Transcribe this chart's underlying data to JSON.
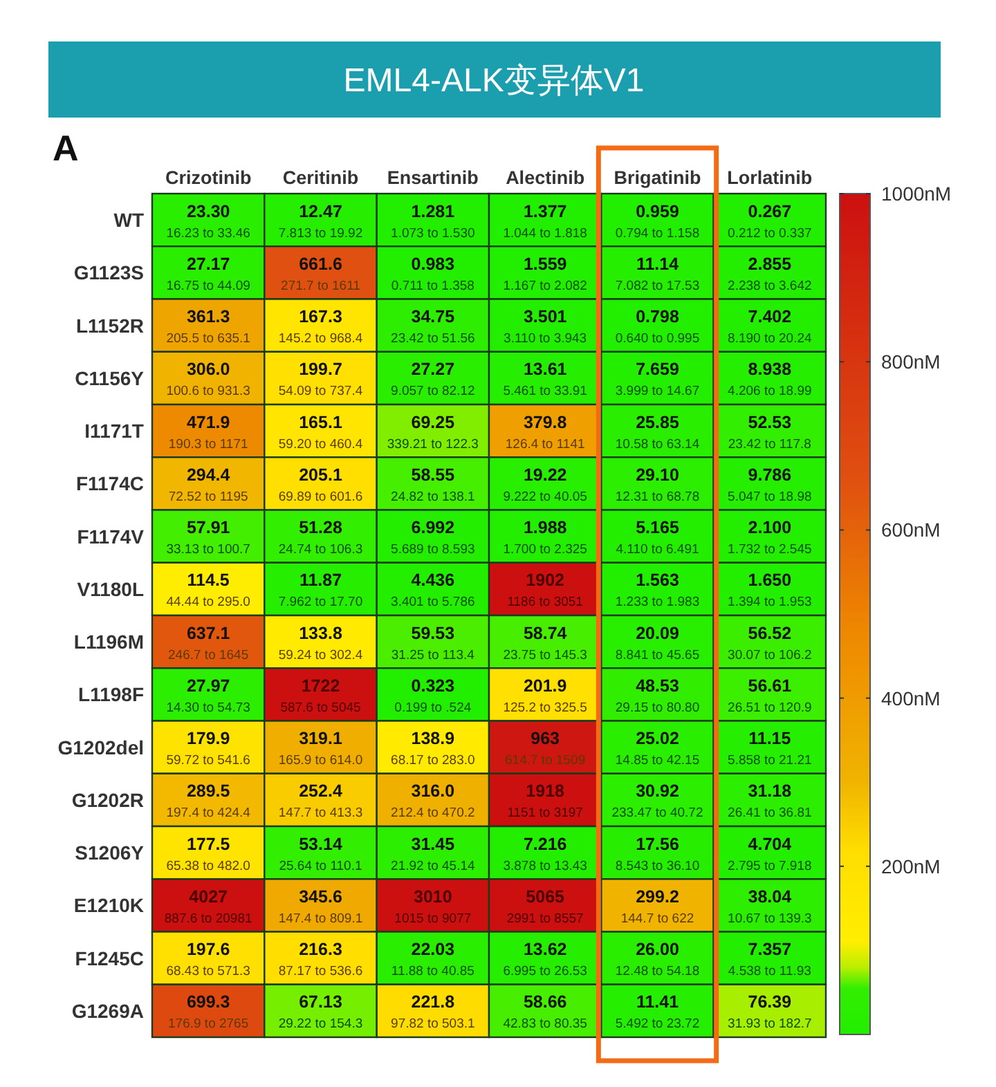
{
  "chart_data": {
    "type": "heatmap",
    "title": "EML4-ALK变异体V1",
    "annotations": [
      "A"
    ],
    "categories": [
      "Crizotinib",
      "Ceritinib",
      "Ensartinib",
      "Alectinib",
      "Brigatinib",
      "Lorlatinib"
    ],
    "y_categories": [
      "WT",
      "G1123S",
      "L1152R",
      "C1156Y",
      "I1171T",
      "F1174C",
      "F1174V",
      "V1180L",
      "L1196M",
      "L1198F",
      "G1202del",
      "G1202R",
      "S1206Y",
      "E1210K",
      "F1245C",
      "G1269A"
    ],
    "cells": [
      [
        23.3,
        12.47,
        1.281,
        1.377,
        0.959,
        0.267
      ],
      [
        27.17,
        661.6,
        0.983,
        1.559,
        11.14,
        2.855
      ],
      [
        361.3,
        167.3,
        34.75,
        3.501,
        0.798,
        7.402
      ],
      [
        306.0,
        199.7,
        27.27,
        13.61,
        7.659,
        8.938
      ],
      [
        471.9,
        165.1,
        69.25,
        379.8,
        25.85,
        52.53
      ],
      [
        294.4,
        205.1,
        58.55,
        19.22,
        29.1,
        9.786
      ],
      [
        57.91,
        51.28,
        6.992,
        1.988,
        5.165,
        2.1
      ],
      [
        114.5,
        11.87,
        4.436,
        1902,
        1.563,
        1.65
      ],
      [
        637.1,
        133.8,
        59.53,
        58.74,
        20.09,
        56.52
      ],
      [
        27.97,
        1722,
        0.323,
        201.9,
        48.53,
        56.61
      ],
      [
        179.9,
        319.1,
        138.9,
        963,
        25.02,
        11.15
      ],
      [
        289.5,
        252.4,
        316.0,
        1918,
        30.92,
        31.18
      ],
      [
        177.5,
        53.14,
        31.45,
        7.216,
        17.56,
        4.704
      ],
      [
        4027,
        345.6,
        3010,
        5065,
        299.2,
        38.04
      ],
      [
        197.6,
        216.3,
        22.03,
        13.62,
        26.0,
        7.357
      ],
      [
        699.3,
        67.13,
        221.8,
        58.66,
        11.41,
        76.39
      ]
    ],
    "cell_labels": [
      [
        "23.30\n16.23 to 33.46",
        "12.47\n7.813 to 19.92",
        "1.281\n1.073 to 1.530",
        "1.377\n1.044 to 1.818",
        "0.959\n0.794 to 1.158",
        "0.267\n0.212 to 0.337"
      ],
      [
        "27.17\n16.75 to 44.09",
        "661.6\n271.7 to 1611",
        "0.983\n0.711 to 1.358",
        "1.559\n1.167 to 2.082",
        "11.14\n7.082 to 17.53",
        "2.855\n2.238 to 3.642"
      ],
      [
        "361.3\n205.5 to 635.1",
        "167.3\n145.2 to 968.4",
        "34.75\n23.42 to 51.56",
        "3.501\n3.110 to 3.943",
        "0.798\n0.640 to 0.995",
        "7.402\n8.190 to 20.24"
      ],
      [
        "306.0\n100.6 to 931.3",
        "199.7\n54.09 to 737.4",
        "27.27\n9.057 to 82.12",
        "13.61\n5.461 to 33.91",
        "7.659\n3.999 to 14.67",
        "8.938\n4.206 to 18.99"
      ],
      [
        "471.9\n190.3 to 1171",
        "165.1\n59.20 to 460.4",
        "69.25\n339.21 to 122.3",
        "379.8\n126.4 to 1141",
        "25.85\n10.58 to 63.14",
        "52.53\n23.42 to 117.8"
      ],
      [
        "294.4\n72.52 to 1195",
        "205.1\n69.89 to 601.6",
        "58.55\n24.82 to 138.1",
        "19.22\n9.222 to 40.05",
        "29.10\n12.31 to 68.78",
        "9.786\n5.047 to 18.98"
      ],
      [
        "57.91\n33.13 to 100.7",
        "51.28\n24.74 to 106.3",
        "6.992\n5.689 to 8.593",
        "1.988\n1.700 to 2.325",
        "5.165\n4.110 to 6.491",
        "2.100\n1.732 to 2.545"
      ],
      [
        "114.5\n44.44 to 295.0",
        "11.87\n7.962 to 17.70",
        "4.436\n3.401 to 5.786",
        "1902\n1186 to 3051",
        "1.563\n1.233 to 1.983",
        "1.650\n1.394 to 1.953"
      ],
      [
        "637.1\n246.7 to 1645",
        "133.8\n59.24 to 302.4",
        "59.53\n31.25 to 113.4",
        "58.74\n23.75 to 145.3",
        "20.09\n8.841 to 45.65",
        "56.52\n30.07 to 106.2"
      ],
      [
        "27.97\n14.30 to 54.73",
        "1722\n587.6 to 5045",
        "0.323\n0.199 to .524",
        "201.9\n125.2 to 325.5",
        "48.53\n29.15 to 80.80",
        "56.61\n26.51 to 120.9"
      ],
      [
        "179.9\n59.72 to 541.6",
        "319.1\n165.9 to 614.0",
        "138.9\n68.17 to 283.0",
        "963\n614.7 to 1509",
        "25.02\n14.85 to 42.15",
        "11.15\n5.858 to 21.21"
      ],
      [
        "289.5\n197.4 to 424.4",
        "252.4\n147.7 to 413.3",
        "316.0\n212.4 to 470.2",
        "1918\n1151 to 3197",
        "30.92\n233.47 to 40.72",
        "31.18\n26.41 to 36.81"
      ],
      [
        "177.5\n65.38 to 482.0",
        "53.14\n25.64 to 110.1",
        "31.45\n21.92 to 45.14",
        "7.216\n3.878 to 13.43",
        "17.56\n8.543 to 36.10",
        "4.704\n2.795 to 7.918"
      ],
      [
        "4027\n887.6 to 20981",
        "345.6\n147.4 to 809.1",
        "3010\n1015 to 9077",
        "5065\n2991 to 8557",
        "299.2\n144.7 to 622",
        "38.04\n10.67 to 139.3"
      ],
      [
        "197.6\n68.43 to 571.3",
        "216.3\n87.17 to 536.6",
        "22.03\n11.88 to 40.85",
        "13.62\n6.995 to 26.53",
        "26.00\n12.48 to 54.18",
        "7.357\n4.538 to 11.93"
      ],
      [
        "699.3\n176.9 to 2765",
        "67.13\n29.22 to 154.3",
        "221.8\n97.82 to 503.1",
        "58.66\n42.83 to 80.35",
        "11.41\n5.492 to 23.72",
        "76.39\n31.93 to 182.7"
      ]
    ],
    "clim": [
      0,
      1000
    ],
    "cticks": [
      {
        "value": 200,
        "label": "200nM"
      },
      {
        "value": 400,
        "label": "400nM"
      },
      {
        "value": 600,
        "label": "600nM"
      },
      {
        "value": 800,
        "label": "800nM"
      },
      {
        "value": 1000,
        "label": "1000nM"
      }
    ]
  }
}
